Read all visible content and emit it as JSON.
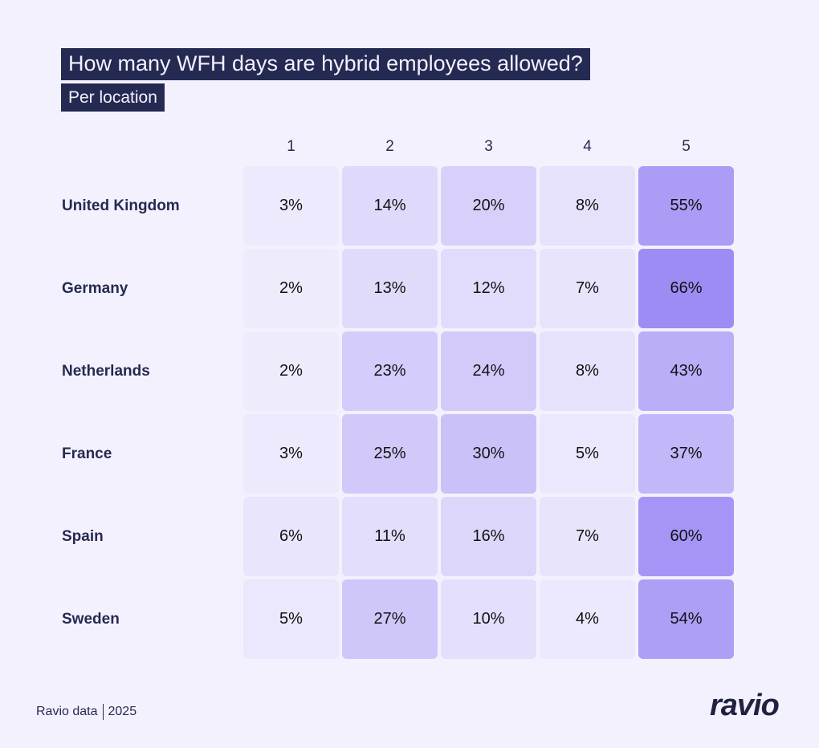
{
  "chart_data": {
    "type": "heatmap",
    "title": "How many WFH days are hybrid employees allowed?",
    "subtitle": "Per location",
    "columns": [
      "1",
      "2",
      "3",
      "4",
      "5"
    ],
    "rows": [
      "United Kingdom",
      "Germany",
      "Netherlands",
      "France",
      "Spain",
      "Sweden"
    ],
    "values": [
      [
        3,
        14,
        20,
        8,
        55
      ],
      [
        2,
        13,
        12,
        7,
        66
      ],
      [
        2,
        23,
        24,
        8,
        43
      ],
      [
        3,
        25,
        30,
        5,
        37
      ],
      [
        6,
        11,
        16,
        7,
        60
      ],
      [
        5,
        27,
        10,
        4,
        54
      ]
    ],
    "unit": "%",
    "color_low": "#f1eefd",
    "color_high": "#9e8cf5"
  },
  "footer": {
    "source": "Ravio data",
    "year": "2025",
    "logo": "ravio"
  },
  "colors": {
    "background": "#f4f1fe",
    "title_bg": "#252a52"
  }
}
